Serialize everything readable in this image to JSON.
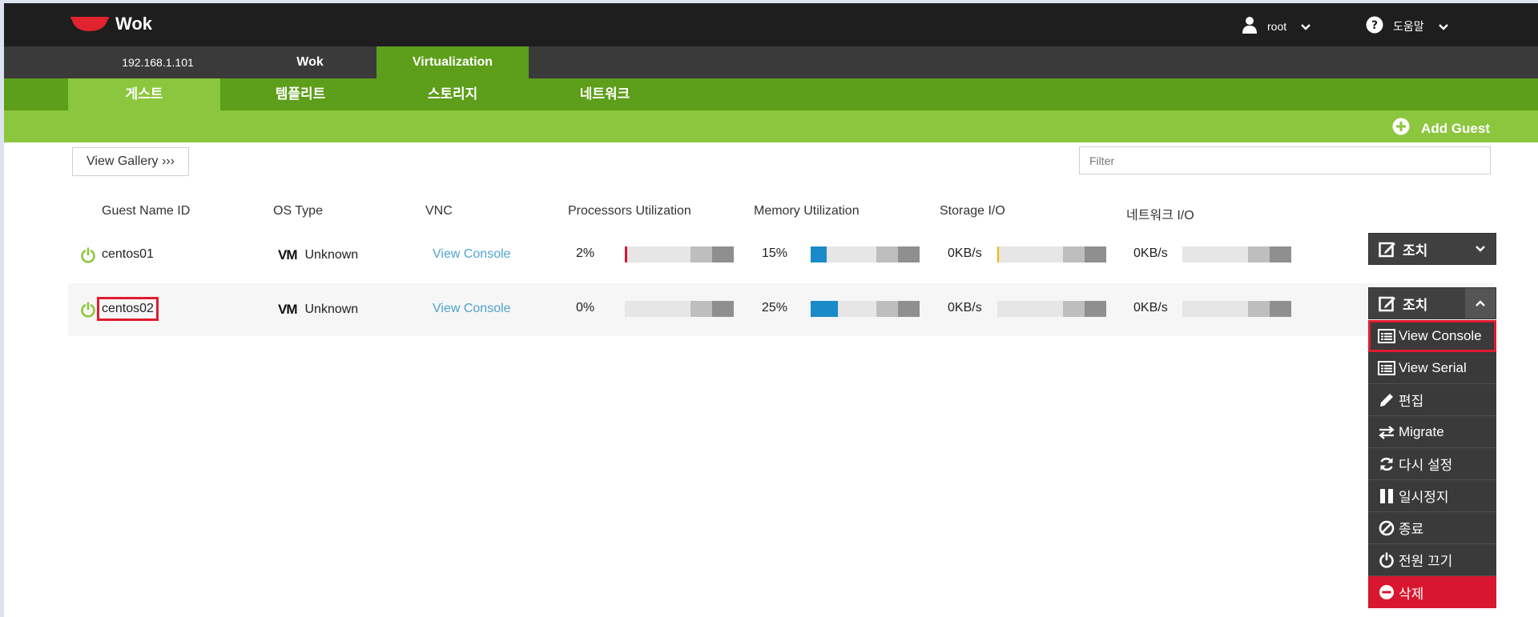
{
  "app": {
    "name": "Wok"
  },
  "header": {
    "user": "root",
    "help": "도움말"
  },
  "host_tabs": [
    {
      "label": "192.168.1.101",
      "active": false
    },
    {
      "label": "Wok",
      "active": false
    },
    {
      "label": "Virtualization",
      "active": true
    }
  ],
  "section_tabs": [
    {
      "label": "게스트",
      "active": true
    },
    {
      "label": "템플리트",
      "active": false
    },
    {
      "label": "스토리지",
      "active": false
    },
    {
      "label": "네트워크",
      "active": false
    }
  ],
  "toolbar": {
    "add_guest": "Add Guest",
    "view_gallery": "View Gallery ›››",
    "filter_placeholder": "Filter"
  },
  "columns": [
    "Guest Name ID",
    "OS Type",
    "VNC",
    "Processors Utilization",
    "Memory Utilization",
    "Storage I/O",
    "네트워크 I/O"
  ],
  "guests": [
    {
      "name": "centos01",
      "os_badge": "VM",
      "os": "Unknown",
      "vnc": "View Console",
      "cpu": "2%",
      "cpu_level": 2,
      "memory": "15%",
      "memory_level": 15,
      "storage": "0KB/s",
      "network": "0KB/s",
      "action": "조치"
    },
    {
      "name": "centos02",
      "os_badge": "VM",
      "os": "Unknown",
      "vnc": "View Console",
      "cpu": "0%",
      "cpu_level": 0,
      "memory": "25%",
      "memory_level": 25,
      "storage": "0KB/s",
      "network": "0KB/s",
      "action": "조치"
    }
  ],
  "action_menu": [
    {
      "label": "View Console",
      "icon": "console-icon"
    },
    {
      "label": "View Serial",
      "icon": "serial-icon"
    },
    {
      "label": "편집",
      "icon": "pencil-icon"
    },
    {
      "label": "Migrate",
      "icon": "migrate-icon"
    },
    {
      "label": "다시 설정",
      "icon": "refresh-icon"
    },
    {
      "label": "일시정지",
      "icon": "pause-icon"
    },
    {
      "label": "종료",
      "icon": "ban-icon"
    },
    {
      "label": "전원 끄기",
      "icon": "power-icon"
    },
    {
      "label": "삭제",
      "icon": "minus-circle-icon"
    }
  ],
  "colors": {
    "topbar": "#1e1e1e",
    "green_dark": "#5d9e1a",
    "green_light": "#8cc63e",
    "link": "#4fa3cf",
    "cpu_fill": "#d9162f",
    "memory_fill": "#1b8ac8",
    "storage_fill": "#f0b400",
    "highlight": "#e01b2f",
    "danger": "#d9162f"
  }
}
